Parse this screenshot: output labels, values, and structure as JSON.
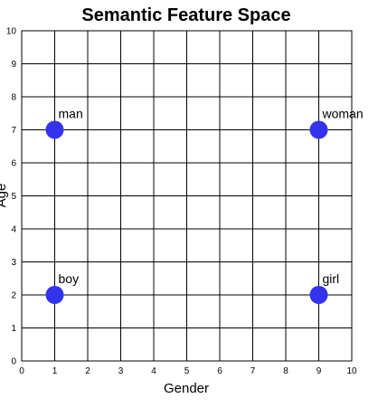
{
  "chart_data": {
    "type": "scatter",
    "title": "Semantic Feature Space",
    "xlabel": "Gender",
    "ylabel": "Age",
    "xlim": [
      0,
      10
    ],
    "ylim": [
      0,
      10
    ],
    "xticks": [
      0,
      1,
      2,
      3,
      4,
      5,
      6,
      7,
      8,
      9,
      10
    ],
    "yticks": [
      0,
      1,
      2,
      3,
      4,
      5,
      6,
      7,
      8,
      9,
      10
    ],
    "grid": true,
    "legend": "none",
    "point_color": "#3333ee",
    "points": [
      {
        "label": "man",
        "x": 1,
        "y": 7
      },
      {
        "label": "woman",
        "x": 9,
        "y": 7
      },
      {
        "label": "boy",
        "x": 1,
        "y": 2
      },
      {
        "label": "girl",
        "x": 9,
        "y": 2
      }
    ]
  }
}
